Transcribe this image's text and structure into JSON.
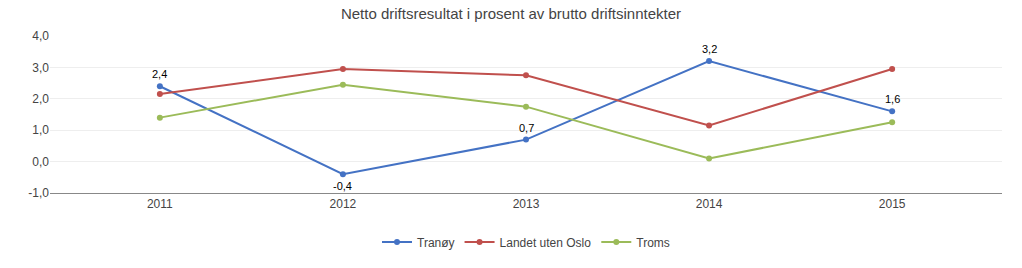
{
  "chart_data": {
    "type": "line",
    "title": "Netto driftsresultat i prosent av brutto driftsinntekter",
    "x": [
      2011,
      2012,
      2013,
      2014,
      2015
    ],
    "series": [
      {
        "name": "Tranøy",
        "color": "#4472C4",
        "marker": "circle",
        "values": [
          2.4,
          -0.4,
          0.7,
          3.2,
          1.6
        ],
        "value_labels": [
          "2,4",
          "-0,4",
          "0,7",
          "3,2",
          "1,6"
        ]
      },
      {
        "name": "Landet uten Oslo",
        "color": "#C0504D",
        "marker": "circle",
        "values": [
          2.15,
          2.95,
          2.75,
          1.15,
          2.95
        ]
      },
      {
        "name": "Troms",
        "color": "#9BBB59",
        "marker": "circle",
        "values": [
          1.4,
          2.45,
          1.75,
          0.1,
          1.25
        ]
      }
    ],
    "xlim": [
      2010.4,
      2015.6
    ],
    "xticks": [
      2011,
      2012,
      2013,
      2014,
      2015
    ],
    "ylim": [
      -1.0,
      4.0
    ],
    "yticks": [
      {
        "value": -1.0,
        "label": "-1,0"
      },
      {
        "value": 0.0,
        "label": "0,0"
      },
      {
        "value": 1.0,
        "label": "1,0"
      },
      {
        "value": 2.0,
        "label": "2,0"
      },
      {
        "value": 3.0,
        "label": "3,0"
      },
      {
        "value": 4.0,
        "label": "4,0"
      }
    ],
    "grid": true,
    "legend": "bottom",
    "data_labels": true
  }
}
